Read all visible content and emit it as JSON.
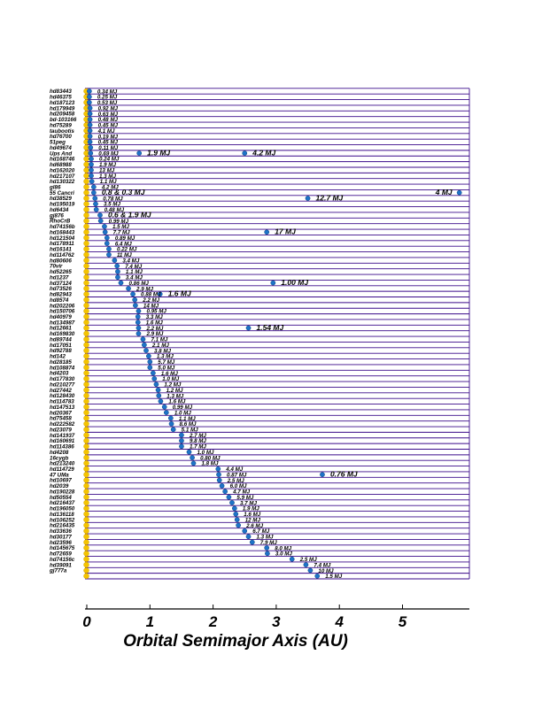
{
  "colors": {
    "row_line": "#3a0a8a",
    "planet": "#1e73c8",
    "star": "#f5c400",
    "axis": "#000000"
  },
  "chart_data": {
    "type": "scatter",
    "title": "",
    "xlabel": "Orbital Semimajor Axis  (AU)",
    "ylabel": "",
    "xlim": [
      0,
      6.2
    ],
    "xticks": [
      "0",
      "1",
      "2",
      "3",
      "4",
      "5"
    ],
    "legend": "none",
    "stars": [
      {
        "name": "hd83443",
        "planets": [
          {
            "a": 0.04,
            "mass": "0.34 MJ"
          }
        ]
      },
      {
        "name": "hd46375",
        "planets": [
          {
            "a": 0.04,
            "mass": "0.25 MJ"
          }
        ]
      },
      {
        "name": "hd187123",
        "planets": [
          {
            "a": 0.04,
            "mass": "0.53 MJ"
          }
        ]
      },
      {
        "name": "hd179949",
        "planets": [
          {
            "a": 0.05,
            "mass": "0.92 MJ"
          }
        ]
      },
      {
        "name": "hd209458",
        "planets": [
          {
            "a": 0.05,
            "mass": "0.63 MJ"
          }
        ]
      },
      {
        "name": "bd-103166",
        "planets": [
          {
            "a": 0.05,
            "mass": "0.48 MJ"
          }
        ]
      },
      {
        "name": "hd75289",
        "planets": [
          {
            "a": 0.05,
            "mass": "0.45 MJ"
          }
        ]
      },
      {
        "name": "taubootis",
        "planets": [
          {
            "a": 0.05,
            "mass": "4.1 MJ"
          }
        ]
      },
      {
        "name": "hd76700",
        "planets": [
          {
            "a": 0.05,
            "mass": "0.19 MJ"
          }
        ]
      },
      {
        "name": "51peg",
        "planets": [
          {
            "a": 0.05,
            "mass": "0.45 MJ"
          }
        ]
      },
      {
        "name": "hd49674",
        "planets": [
          {
            "a": 0.06,
            "mass": "0.11 MJ"
          }
        ]
      },
      {
        "name": "Ups And",
        "planets": [
          {
            "a": 0.06,
            "mass": "0.69 MJ"
          },
          {
            "a": 0.83,
            "mass": "1.9 MJ"
          },
          {
            "a": 2.5,
            "mass": "4.2 MJ"
          }
        ]
      },
      {
        "name": "hd168746",
        "planets": [
          {
            "a": 0.07,
            "mass": "0.24 MJ"
          }
        ]
      },
      {
        "name": "hd68988",
        "planets": [
          {
            "a": 0.07,
            "mass": "1.9 MJ"
          }
        ]
      },
      {
        "name": "hd162020",
        "planets": [
          {
            "a": 0.07,
            "mass": "13 MJ"
          }
        ]
      },
      {
        "name": "hd217107",
        "planets": [
          {
            "a": 0.07,
            "mass": "1.3 MJ"
          }
        ]
      },
      {
        "name": "hd130322",
        "planets": [
          {
            "a": 0.08,
            "mass": "1.1 MJ"
          }
        ]
      },
      {
        "name": "gl86",
        "planets": [
          {
            "a": 0.11,
            "mass": "4.2 MJ"
          }
        ]
      },
      {
        "name": "55 Cancri",
        "planets": [
          {
            "a": 0.11,
            "mass": "0.8 & 0.3 MJ"
          },
          {
            "a": 5.9,
            "mass": "4 MJ"
          }
        ]
      },
      {
        "name": "hd38529",
        "planets": [
          {
            "a": 0.13,
            "mass": "0.78 MJ"
          },
          {
            "a": 3.5,
            "mass": "12.7 MJ"
          }
        ]
      },
      {
        "name": "hd195019",
        "planets": [
          {
            "a": 0.14,
            "mass": "3.5 MJ"
          }
        ]
      },
      {
        "name": "hd6434",
        "planets": [
          {
            "a": 0.15,
            "mass": "0.48 MJ"
          }
        ]
      },
      {
        "name": "gj876",
        "planets": [
          {
            "a": 0.21,
            "mass": "0.6 & 1.9 MJ"
          }
        ]
      },
      {
        "name": "RhoCrB",
        "planets": [
          {
            "a": 0.22,
            "mass": "0.99 MJ"
          }
        ]
      },
      {
        "name": "hd74156b",
        "planets": [
          {
            "a": 0.28,
            "mass": "1.5 MJ"
          }
        ]
      },
      {
        "name": "hd168443",
        "planets": [
          {
            "a": 0.29,
            "mass": "7.7 MJ"
          },
          {
            "a": 2.85,
            "mass": "17 MJ"
          }
        ]
      },
      {
        "name": "hd121504",
        "planets": [
          {
            "a": 0.32,
            "mass": "0.89 MJ"
          }
        ]
      },
      {
        "name": "hd178911",
        "planets": [
          {
            "a": 0.32,
            "mass": "6.4 MJ"
          }
        ]
      },
      {
        "name": "hd16141",
        "planets": [
          {
            "a": 0.35,
            "mass": "0.22 MJ"
          }
        ]
      },
      {
        "name": "hd114762",
        "planets": [
          {
            "a": 0.35,
            "mass": "11 MJ"
          }
        ]
      },
      {
        "name": "hd80606",
        "planets": [
          {
            "a": 0.44,
            "mass": "3.4 MJ"
          }
        ]
      },
      {
        "name": "70vir",
        "planets": [
          {
            "a": 0.48,
            "mass": "7.4 MJ"
          }
        ]
      },
      {
        "name": "hd52265",
        "planets": [
          {
            "a": 0.49,
            "mass": "1.1 MJ"
          }
        ]
      },
      {
        "name": "hd1237",
        "planets": [
          {
            "a": 0.49,
            "mass": "3.4 MJ"
          }
        ]
      },
      {
        "name": "hd37124",
        "planets": [
          {
            "a": 0.54,
            "mass": "0.86 MJ"
          },
          {
            "a": 2.95,
            "mass": "1.00 MJ"
          }
        ]
      },
      {
        "name": "hd73526",
        "planets": [
          {
            "a": 0.66,
            "mass": "2.9 MJ"
          }
        ]
      },
      {
        "name": "hd82943",
        "planets": [
          {
            "a": 0.73,
            "mass": "0.88 MJ"
          },
          {
            "a": 1.16,
            "mass": "1.6 MJ"
          }
        ]
      },
      {
        "name": "hd8574",
        "planets": [
          {
            "a": 0.76,
            "mass": "2.2 MJ"
          }
        ]
      },
      {
        "name": "hd202206",
        "planets": [
          {
            "a": 0.77,
            "mass": "14 MJ"
          }
        ]
      },
      {
        "name": "hd150706",
        "planets": [
          {
            "a": 0.82,
            "mass": "0.95 MJ"
          }
        ]
      },
      {
        "name": "hd40979",
        "planets": [
          {
            "a": 0.81,
            "mass": "3.3 MJ"
          }
        ]
      },
      {
        "name": "hd134987",
        "planets": [
          {
            "a": 0.81,
            "mass": "1.6 MJ"
          }
        ]
      },
      {
        "name": "hd12661",
        "planets": [
          {
            "a": 0.82,
            "mass": "2.2 MJ"
          },
          {
            "a": 2.56,
            "mass": "1.54 MJ"
          }
        ]
      },
      {
        "name": "hd169830",
        "planets": [
          {
            "a": 0.82,
            "mass": "2.9 MJ"
          }
        ]
      },
      {
        "name": "hd89744",
        "planets": [
          {
            "a": 0.89,
            "mass": "7.1 MJ"
          }
        ]
      },
      {
        "name": "hd17051",
        "planets": [
          {
            "a": 0.91,
            "mass": "2.1 MJ"
          }
        ]
      },
      {
        "name": "hd92788",
        "planets": [
          {
            "a": 0.94,
            "mass": "3.8 MJ"
          }
        ]
      },
      {
        "name": "hd142",
        "planets": [
          {
            "a": 0.98,
            "mass": "1.3 MJ"
          }
        ]
      },
      {
        "name": "hd28185",
        "planets": [
          {
            "a": 1.0,
            "mass": "5.7 MJ"
          }
        ]
      },
      {
        "name": "hd108874",
        "planets": [
          {
            "a": 1.0,
            "mass": "5.0 MJ"
          }
        ]
      },
      {
        "name": "hd4203",
        "planets": [
          {
            "a": 1.05,
            "mass": "1.6 MJ"
          }
        ]
      },
      {
        "name": "hd177830",
        "planets": [
          {
            "a": 1.07,
            "mass": "1.0 MJ"
          }
        ]
      },
      {
        "name": "hd210277",
        "planets": [
          {
            "a": 1.1,
            "mass": "1.2 MJ"
          }
        ]
      },
      {
        "name": "hd27442",
        "planets": [
          {
            "a": 1.13,
            "mass": "1.2 MJ"
          }
        ]
      },
      {
        "name": "hd128430",
        "planets": [
          {
            "a": 1.14,
            "mass": "1.3 MJ"
          }
        ]
      },
      {
        "name": "hd114783",
        "planets": [
          {
            "a": 1.17,
            "mass": "1.6 MJ"
          }
        ]
      },
      {
        "name": "hd147513",
        "planets": [
          {
            "a": 1.23,
            "mass": "0.99 MJ"
          }
        ]
      },
      {
        "name": "hd20367",
        "planets": [
          {
            "a": 1.26,
            "mass": "1.0 MJ"
          }
        ]
      },
      {
        "name": "hd75458",
        "planets": [
          {
            "a": 1.33,
            "mass": "1.1 MJ"
          }
        ]
      },
      {
        "name": "hd222582",
        "planets": [
          {
            "a": 1.34,
            "mass": "8.6 MJ"
          }
        ]
      },
      {
        "name": "hd23079",
        "planets": [
          {
            "a": 1.37,
            "mass": "5.1 MJ"
          }
        ]
      },
      {
        "name": "hd141937",
        "planets": [
          {
            "a": 1.5,
            "mass": "2.7 MJ"
          }
        ]
      },
      {
        "name": "hd160691",
        "planets": [
          {
            "a": 1.5,
            "mass": "9.8 MJ"
          }
        ]
      },
      {
        "name": "hd114386",
        "planets": [
          {
            "a": 1.5,
            "mass": "1.7 MJ"
          }
        ]
      },
      {
        "name": "hd4208",
        "planets": [
          {
            "a": 1.62,
            "mass": "1.0 MJ"
          }
        ]
      },
      {
        "name": "16cygb",
        "planets": [
          {
            "a": 1.67,
            "mass": "0.80 MJ"
          }
        ]
      },
      {
        "name": "hd213240",
        "planets": [
          {
            "a": 1.69,
            "mass": "1.8 MJ"
          }
        ]
      },
      {
        "name": "hd114729",
        "planets": [
          {
            "a": 2.08,
            "mass": "4.4 MJ"
          }
        ]
      },
      {
        "name": "47 UMa",
        "planets": [
          {
            "a": 2.09,
            "mass": "0.87 MJ"
          },
          {
            "a": 3.73,
            "mass": "0.76 MJ"
          }
        ]
      },
      {
        "name": "hd10697",
        "planets": [
          {
            "a": 2.1,
            "mass": "2.5 MJ"
          }
        ]
      },
      {
        "name": "hd2039",
        "planets": [
          {
            "a": 2.14,
            "mass": "6.0 MJ"
          }
        ]
      },
      {
        "name": "hd190228",
        "planets": [
          {
            "a": 2.19,
            "mass": "4.7 MJ"
          }
        ]
      },
      {
        "name": "hd50554",
        "planets": [
          {
            "a": 2.25,
            "mass": "5.9 MJ"
          }
        ]
      },
      {
        "name": "hd216437",
        "planets": [
          {
            "a": 2.3,
            "mass": "3.7 MJ"
          }
        ]
      },
      {
        "name": "hd196050",
        "planets": [
          {
            "a": 2.34,
            "mass": "1.9 MJ"
          }
        ]
      },
      {
        "name": "hd136118",
        "planets": [
          {
            "a": 2.36,
            "mass": "1.6 MJ"
          }
        ]
      },
      {
        "name": "hd106252",
        "planets": [
          {
            "a": 2.38,
            "mass": "12 MJ"
          }
        ]
      },
      {
        "name": "hd216435",
        "planets": [
          {
            "a": 2.4,
            "mass": "2.6 MJ"
          }
        ]
      },
      {
        "name": "hd33636",
        "planets": [
          {
            "a": 2.5,
            "mass": "6.7 MJ"
          }
        ]
      },
      {
        "name": "hd30177",
        "planets": [
          {
            "a": 2.56,
            "mass": "1.3 MJ"
          }
        ]
      },
      {
        "name": "hd23596",
        "planets": [
          {
            "a": 2.62,
            "mass": "7.9 MJ"
          }
        ]
      },
      {
        "name": "hd145675",
        "planets": [
          {
            "a": 2.85,
            "mass": "8.0 MJ"
          }
        ]
      },
      {
        "name": "hd72659",
        "planets": [
          {
            "a": 2.86,
            "mass": "3.0 MJ"
          }
        ]
      },
      {
        "name": "hd74156c",
        "planets": [
          {
            "a": 3.25,
            "mass": "2.5 MJ"
          }
        ]
      },
      {
        "name": "hd39091",
        "planets": [
          {
            "a": 3.47,
            "mass": "7.4 MJ"
          }
        ]
      },
      {
        "name": "gj777a",
        "planets": [
          {
            "a": 3.54,
            "mass": "10 MJ"
          }
        ]
      },
      {
        "name": "",
        "planets": [
          {
            "a": 3.65,
            "mass": "1.5 MJ"
          }
        ]
      }
    ]
  }
}
